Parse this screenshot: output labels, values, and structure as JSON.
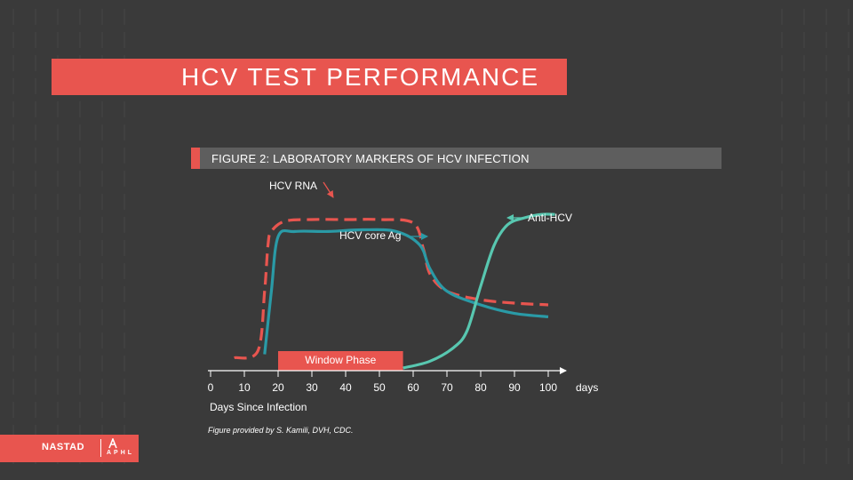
{
  "slide": {
    "title": "HCV TEST PERFORMANCE",
    "figure_caption": "FIGURE 2: LABORATORY MARKERS OF HCV  INFECTION",
    "credit": "Figure provided by S. Kamili, DVH, CDC."
  },
  "colors": {
    "background": "#3a3a3a",
    "accent": "#e8554f",
    "caption_bar": "#5e5e5e",
    "hcv_rna": "#e8554f",
    "hcv_core_ag": "#2a9aa6",
    "anti_hcv": "#58c7b0"
  },
  "chart_data": {
    "type": "line",
    "xlabel": "Days Since Infection",
    "x_unit": "days",
    "xlim": [
      0,
      105
    ],
    "x_ticks": [
      0,
      10,
      20,
      30,
      40,
      50,
      60,
      70,
      80,
      90,
      100
    ],
    "ylim": [
      0,
      1
    ],
    "series": [
      {
        "name": "HCV RNA",
        "style": "dashed",
        "x": [
          7,
          14,
          16,
          17,
          18,
          22,
          30,
          40,
          50,
          60,
          63,
          65,
          70,
          80,
          90,
          100
        ],
        "y": [
          0.06,
          0.1,
          0.45,
          0.72,
          0.8,
          0.86,
          0.87,
          0.87,
          0.87,
          0.85,
          0.7,
          0.55,
          0.45,
          0.4,
          0.38,
          0.37
        ]
      },
      {
        "name": "HCV core Ag",
        "style": "solid",
        "x": [
          16,
          18,
          20,
          25,
          35,
          45,
          55,
          62,
          65,
          70,
          80,
          90,
          100
        ],
        "y": [
          0.08,
          0.45,
          0.77,
          0.8,
          0.8,
          0.81,
          0.8,
          0.72,
          0.58,
          0.45,
          0.37,
          0.32,
          0.3
        ]
      },
      {
        "name": "Anti-HCV",
        "style": "solid",
        "x": [
          57,
          65,
          72,
          76,
          80,
          84,
          88,
          93,
          98,
          102
        ],
        "y": [
          0.0,
          0.04,
          0.12,
          0.22,
          0.48,
          0.72,
          0.84,
          0.88,
          0.9,
          0.9
        ]
      }
    ],
    "annotations": [
      {
        "label": "HCV RNA"
      },
      {
        "label": "HCV core Ag"
      },
      {
        "label": "Anti-HCV"
      }
    ],
    "window_phase": {
      "label": "Window Phase",
      "x_start": 20,
      "x_end": 57
    }
  },
  "footer": {
    "logo_left": "NASTAD",
    "logo_right": "APHL"
  }
}
